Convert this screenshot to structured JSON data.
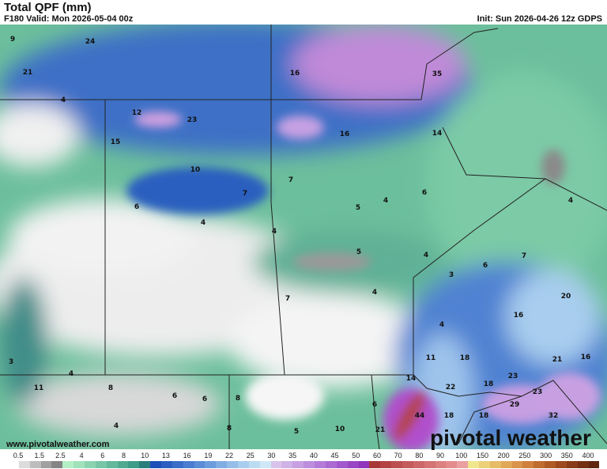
{
  "header": {
    "title": "Total QPF (mm)",
    "valid": "F180 Valid: Mon 2026-05-04 00z",
    "init": "Init: Sun 2026-04-26 12z GDPS"
  },
  "footer": {
    "credit": "www.pivotalweather.com",
    "brand": "pivotal weather"
  },
  "map": {
    "labels": [
      "9",
      "24",
      "21",
      "16",
      "35",
      "4",
      "12",
      "23",
      "15",
      "16",
      "14",
      "10",
      "7",
      "7",
      "6",
      "6",
      "4",
      "5",
      "4",
      "4",
      "5",
      "4",
      "3",
      "6",
      "7",
      "7",
      "4",
      "4",
      "20",
      "16",
      "4",
      "11",
      "18",
      "21",
      "16",
      "14",
      "22",
      "23",
      "18",
      "23",
      "3",
      "4",
      "11",
      "8",
      "6",
      "6",
      "8",
      "4",
      "6",
      "8",
      "5",
      "10",
      "21",
      "44",
      "18",
      "29",
      "32",
      "18"
    ]
  },
  "colorbar": {
    "labels": [
      "0.5",
      "1.5",
      "2.5",
      "4",
      "6",
      "8",
      "10",
      "13",
      "16",
      "19",
      "22",
      "25",
      "30",
      "35",
      "40",
      "45",
      "50",
      "60",
      "70",
      "80",
      "90",
      "100",
      "150",
      "200",
      "250",
      "300",
      "350",
      "400"
    ],
    "colors": [
      "#ffffff",
      "#dcdcdc",
      "#bdbdbd",
      "#a0a0a0",
      "#858585",
      "#b4efc6",
      "#a0e2bb",
      "#8cd4b0",
      "#78c6a6",
      "#64b89c",
      "#50aa92",
      "#3c9c88",
      "#2a7e7c",
      "#1e4fb8",
      "#2c5ec0",
      "#3a6dc8",
      "#4a7dd0",
      "#5a8dd6",
      "#6c9cdc",
      "#80aee2",
      "#94bee8",
      "#a8cdee",
      "#bcdcf2",
      "#d0e8f6",
      "#d8c4ea",
      "#cfb2e6",
      "#c6a0e2",
      "#bd8ede",
      "#b47cd8",
      "#ab6ad2",
      "#a258cc",
      "#9946c4",
      "#9034bc",
      "#a83838",
      "#b44444",
      "#bc5050",
      "#c45c5c",
      "#cc6868",
      "#d47474",
      "#dc8080",
      "#e48c8c",
      "#eaa0a0",
      "#f0e68c",
      "#ecd07a",
      "#e6bc68",
      "#e0a858",
      "#d8944a",
      "#ce803c",
      "#c06c30",
      "#b05a26",
      "#9c4a1e",
      "#883c18",
      "#743012",
      "#60260e"
    ]
  }
}
